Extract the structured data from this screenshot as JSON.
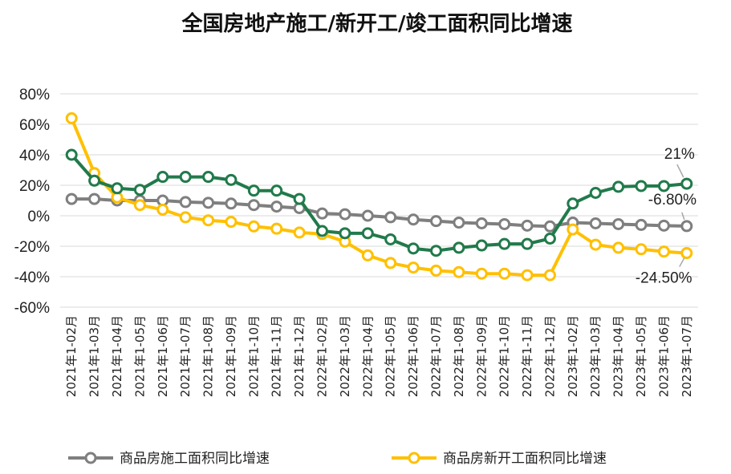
{
  "chart_data": {
    "type": "line",
    "title": "全国房地产施工/新开工/竣工面积同比增速",
    "xlabel": "",
    "ylabel": "",
    "ylim": [
      -60,
      80
    ],
    "yticks": [
      80,
      60,
      40,
      20,
      0,
      -20,
      -40,
      -60
    ],
    "ytick_labels": [
      "80%",
      "60%",
      "40%",
      "20%",
      "0%",
      "-20%",
      "-40%",
      "-60%"
    ],
    "grid": true,
    "categories": [
      "2021年1-02月",
      "2021年1-03月",
      "2021年1-04月",
      "2021年1-05月",
      "2021年1-06月",
      "2021年1-07月",
      "2021年1-08月",
      "2021年1-09月",
      "2021年1-10月",
      "2021年1-11月",
      "2021年1-12月",
      "2022年1-02月",
      "2022年1-03月",
      "2022年1-04月",
      "2022年1-05月",
      "2022年1-06月",
      "2022年1-07月",
      "2022年1-08月",
      "2022年1-09月",
      "2022年1-10月",
      "2022年1-11月",
      "2022年1-12月",
      "2023年1-02月",
      "2023年1-03月",
      "2023年1-04月",
      "2023年1-05月",
      "2023年1-06月",
      "2023年1-07月"
    ],
    "series": [
      {
        "name": "商品房施工面积同比增速",
        "color": "#7f7f7f",
        "in_legend": true,
        "values": [
          11,
          11,
          10,
          10,
          10,
          9,
          8.5,
          8,
          7,
          6,
          5,
          1.5,
          1,
          0,
          -1,
          -2.5,
          -3.5,
          -4.5,
          -5,
          -5.5,
          -6.5,
          -7,
          -4.5,
          -5,
          -5.5,
          -6,
          -6.5,
          -6.8
        ]
      },
      {
        "name": "商品房新开工面积同比增速",
        "color": "#ffc000",
        "in_legend": true,
        "values": [
          64,
          28,
          12,
          7,
          4,
          -1,
          -3,
          -4,
          -7,
          -8.5,
          -11,
          -12,
          -17,
          -26,
          -31,
          -34,
          -36,
          -37,
          -38,
          -38,
          -39,
          -39,
          -9,
          -19,
          -21,
          -22,
          -23.5,
          -24.5
        ]
      },
      {
        "name": "",
        "color": "#217a4b",
        "in_legend": false,
        "values": [
          40,
          23,
          18,
          17,
          25.5,
          25.5,
          25.5,
          23.5,
          16.5,
          16.5,
          11,
          -10,
          -11.5,
          -11.5,
          -15.5,
          -21.5,
          -23,
          -21,
          -19.5,
          -18.5,
          -18.5,
          -15,
          8,
          15,
          19,
          19.5,
          19.5,
          21
        ]
      }
    ],
    "annotations": [
      {
        "text": "21%",
        "series": 2,
        "index": 27
      },
      {
        "text": "-6.80%",
        "series": 0,
        "index": 27
      },
      {
        "text": "-24.50%",
        "series": 1,
        "index": 27
      }
    ],
    "legend_position": "bottom"
  }
}
